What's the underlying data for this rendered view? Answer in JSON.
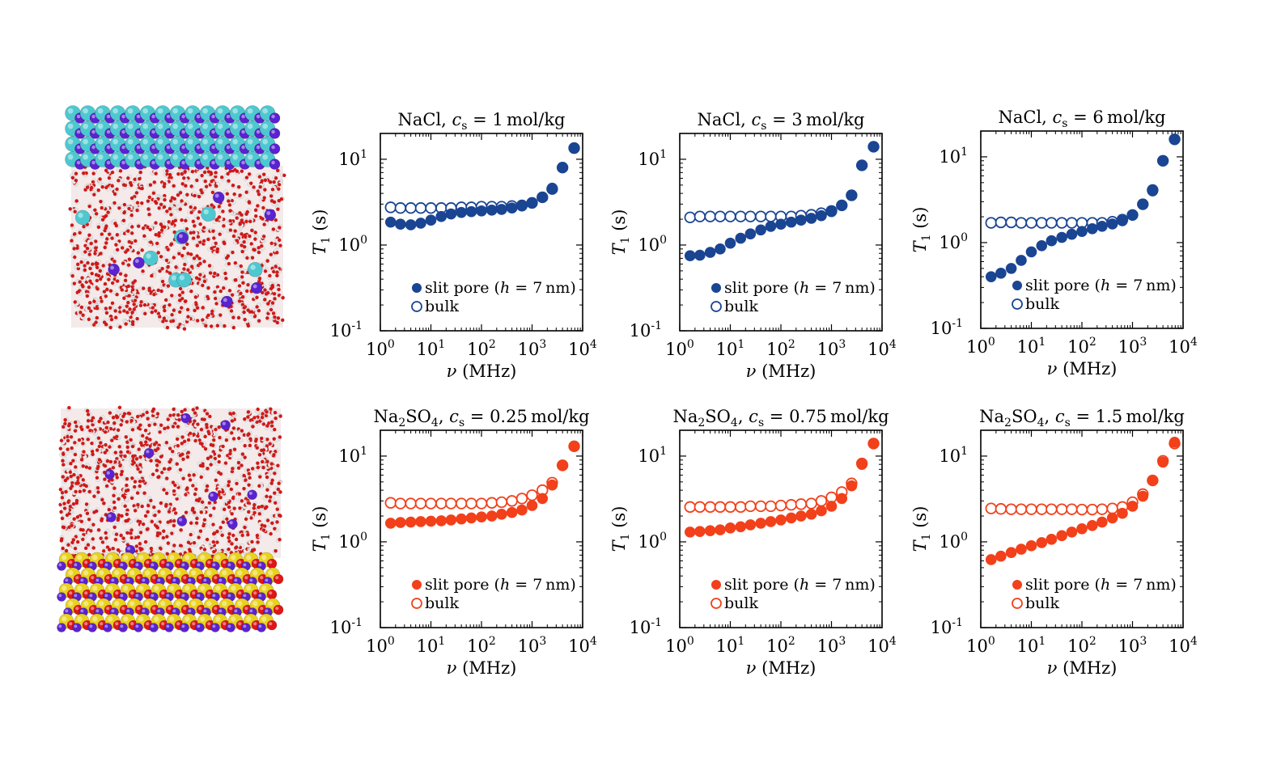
{
  "colors": {
    "nacl": "#1a4592",
    "na2so4": "#f2401b",
    "axis": "#000000",
    "water_o": "#d01818",
    "water_h": "#e8e8e8",
    "cl_cyan": "#4ec8d0",
    "na_purple": "#5a22d0",
    "s_yellow": "#e9d21c",
    "so4_o_red": "#e11515"
  },
  "snapshots": [
    {
      "label": "NaCl slab snapshot",
      "icon": "molecular-snapshot"
    },
    {
      "label": "Na2SO4 slab snapshot",
      "icon": "molecular-snapshot"
    }
  ],
  "legend": {
    "slit": "slit pore (h = 7 nm)",
    "bulk": "bulk"
  },
  "chart_data": [
    {
      "type": "scatter",
      "salt": "NaCl",
      "title": "NaCl, c_s = 1 mol/kg",
      "title_parts": [
        "NaCl, ",
        "c",
        "s",
        " = 1 mol/kg"
      ],
      "xlabel": "ν (MHz)",
      "ylabel": "T1 (s)",
      "xlim": [
        1,
        10000
      ],
      "ylim": [
        0.1,
        20
      ],
      "xscale": "log",
      "yscale": "log",
      "legend_position": "bottom-right",
      "series": [
        {
          "name": "slit pore (h = 7 nm)",
          "marker": "filled",
          "x": [
            1.6,
            2.5,
            4,
            6.3,
            10,
            16,
            25,
            40,
            63,
            100,
            160,
            250,
            400,
            630,
            1000,
            1600,
            2500,
            4000,
            6800
          ],
          "y": [
            1.85,
            1.75,
            1.72,
            1.8,
            1.95,
            2.15,
            2.3,
            2.4,
            2.45,
            2.5,
            2.55,
            2.6,
            2.7,
            2.85,
            3.1,
            3.6,
            4.6,
            8.0,
            13.5
          ]
        },
        {
          "name": "bulk",
          "marker": "open",
          "x": [
            1.6,
            2.5,
            4,
            6.3,
            10,
            16,
            25,
            40,
            63,
            100,
            160,
            250,
            400,
            630,
            1000,
            1600,
            2500,
            4000,
            6800
          ],
          "y": [
            2.75,
            2.7,
            2.7,
            2.7,
            2.7,
            2.7,
            2.7,
            2.75,
            2.75,
            2.8,
            2.8,
            2.8,
            2.85,
            2.9,
            3.1,
            3.6,
            4.5,
            8.0,
            13.5
          ]
        }
      ]
    },
    {
      "type": "scatter",
      "salt": "NaCl",
      "title": "NaCl, c_s = 3 mol/kg",
      "title_parts": [
        "NaCl, ",
        "c",
        "s",
        " = 3 mol/kg"
      ],
      "xlabel": "ν (MHz)",
      "ylabel": "T1 (s)",
      "xlim": [
        1,
        10000
      ],
      "ylim": [
        0.1,
        20
      ],
      "xscale": "log",
      "yscale": "log",
      "legend_position": "bottom-right",
      "series": [
        {
          "name": "slit pore (h = 7 nm)",
          "marker": "filled",
          "x": [
            1.6,
            2.5,
            4,
            6.3,
            10,
            16,
            25,
            40,
            63,
            100,
            160,
            250,
            400,
            630,
            1000,
            1600,
            2500,
            4000,
            6800
          ],
          "y": [
            0.75,
            0.76,
            0.82,
            0.9,
            1.05,
            1.2,
            1.35,
            1.5,
            1.65,
            1.75,
            1.85,
            1.95,
            2.05,
            2.2,
            2.45,
            2.9,
            3.8,
            8.5,
            14.0
          ]
        },
        {
          "name": "bulk",
          "marker": "open",
          "x": [
            1.6,
            2.5,
            4,
            6.3,
            10,
            16,
            25,
            40,
            63,
            100,
            160,
            250,
            400,
            630,
            1000,
            1600,
            2500,
            4000,
            6800
          ],
          "y": [
            2.1,
            2.15,
            2.15,
            2.15,
            2.15,
            2.15,
            2.15,
            2.15,
            2.15,
            2.15,
            2.15,
            2.2,
            2.25,
            2.35,
            2.5,
            2.9,
            3.8,
            8.5,
            14.0
          ]
        }
      ]
    },
    {
      "type": "scatter",
      "salt": "NaCl",
      "title": "NaCl, c_s = 6 mol/kg",
      "title_parts": [
        "NaCl, ",
        "c",
        "s",
        " = 6 mol/kg"
      ],
      "xlabel": "ν (MHz)",
      "ylabel": "T1 (s)",
      "xlim": [
        1,
        10000
      ],
      "ylim": [
        0.1,
        20
      ],
      "xscale": "log",
      "yscale": "log",
      "legend_position": "bottom-right",
      "series": [
        {
          "name": "slit pore (h = 7 nm)",
          "marker": "filled",
          "x": [
            1.6,
            2.5,
            4,
            6.3,
            10,
            16,
            25,
            40,
            63,
            100,
            160,
            250,
            400,
            630,
            1000,
            1600,
            2500,
            4000,
            6800
          ],
          "y": [
            0.4,
            0.44,
            0.5,
            0.62,
            0.78,
            0.92,
            1.05,
            1.15,
            1.25,
            1.35,
            1.45,
            1.55,
            1.65,
            1.8,
            2.1,
            2.8,
            4.0,
            9.0,
            16.0
          ]
        },
        {
          "name": "bulk",
          "marker": "open",
          "x": [
            1.6,
            2.5,
            4,
            6.3,
            10,
            16,
            25,
            40,
            63,
            100,
            160,
            250,
            400,
            630,
            1000,
            1600,
            2500,
            4000,
            6800
          ],
          "y": [
            1.7,
            1.72,
            1.72,
            1.7,
            1.7,
            1.7,
            1.7,
            1.7,
            1.7,
            1.7,
            1.7,
            1.7,
            1.75,
            1.85,
            2.1,
            2.8,
            4.1,
            9.0,
            16.0
          ]
        }
      ]
    },
    {
      "type": "scatter",
      "salt": "Na2SO4",
      "title": "Na2SO4, c_s = 0.25 mol/kg",
      "title_parts": [
        "Na",
        "2",
        "SO",
        "4",
        ", ",
        "c",
        "s",
        " = 0.25 mol/kg"
      ],
      "xlabel": "ν (MHz)",
      "ylabel": "T1 (s)",
      "xlim": [
        1,
        10000
      ],
      "ylim": [
        0.1,
        20
      ],
      "xscale": "log",
      "yscale": "log",
      "legend_position": "bottom-right",
      "series": [
        {
          "name": "slit pore (h = 7 nm)",
          "marker": "filled",
          "x": [
            1.6,
            2.5,
            4,
            6.3,
            10,
            16,
            25,
            40,
            63,
            100,
            160,
            250,
            400,
            630,
            1000,
            1600,
            2500,
            4000,
            6800
          ],
          "y": [
            1.65,
            1.68,
            1.7,
            1.72,
            1.74,
            1.76,
            1.8,
            1.85,
            1.9,
            1.95,
            2.0,
            2.1,
            2.2,
            2.35,
            2.65,
            3.2,
            4.6,
            7.8,
            13.0
          ]
        },
        {
          "name": "bulk",
          "marker": "open",
          "x": [
            1.6,
            2.5,
            4,
            6.3,
            10,
            16,
            25,
            40,
            63,
            100,
            160,
            250,
            400,
            630,
            1000,
            1600,
            2500,
            4000,
            6800
          ],
          "y": [
            2.85,
            2.8,
            2.8,
            2.8,
            2.8,
            2.8,
            2.8,
            2.8,
            2.8,
            2.8,
            2.85,
            2.9,
            3.0,
            3.2,
            3.5,
            4.0,
            4.9,
            7.8,
            13.0
          ]
        }
      ]
    },
    {
      "type": "scatter",
      "salt": "Na2SO4",
      "title": "Na2SO4, c_s = 0.75 mol/kg",
      "title_parts": [
        "Na",
        "2",
        "SO",
        "4",
        ", ",
        "c",
        "s",
        " = 0.75 mol/kg"
      ],
      "xlabel": "ν (MHz)",
      "ylabel": "T1 (s)",
      "xlim": [
        1,
        10000
      ],
      "ylim": [
        0.1,
        20
      ],
      "xscale": "log",
      "yscale": "log",
      "legend_position": "bottom-right",
      "series": [
        {
          "name": "slit pore (h = 7 nm)",
          "marker": "filled",
          "x": [
            1.6,
            2.5,
            4,
            6.3,
            10,
            16,
            25,
            40,
            63,
            100,
            160,
            250,
            400,
            630,
            1000,
            1600,
            2500,
            4000,
            6800
          ],
          "y": [
            1.3,
            1.32,
            1.35,
            1.38,
            1.45,
            1.5,
            1.58,
            1.65,
            1.72,
            1.8,
            1.9,
            2.0,
            2.1,
            2.3,
            2.6,
            3.2,
            4.5,
            8.0,
            14.0
          ]
        },
        {
          "name": "bulk",
          "marker": "open",
          "x": [
            1.6,
            2.5,
            4,
            6.3,
            10,
            16,
            25,
            40,
            63,
            100,
            160,
            250,
            400,
            630,
            1000,
            1600,
            2500,
            4000,
            6800
          ],
          "y": [
            2.55,
            2.55,
            2.55,
            2.55,
            2.55,
            2.55,
            2.6,
            2.6,
            2.6,
            2.65,
            2.7,
            2.75,
            2.8,
            3.0,
            3.3,
            3.8,
            4.8,
            8.2,
            14.0
          ]
        }
      ]
    },
    {
      "type": "scatter",
      "salt": "Na2SO4",
      "title": "Na2SO4, c_s = 1.5 mol/kg",
      "title_parts": [
        "Na",
        "2",
        "SO",
        "4",
        ", ",
        "c",
        "s",
        " = 1.5 mol/kg"
      ],
      "xlabel": "ν (MHz)",
      "ylabel": "T1 (s)",
      "xlim": [
        1,
        10000
      ],
      "ylim": [
        0.1,
        20
      ],
      "xscale": "log",
      "yscale": "log",
      "legend_position": "bottom-right",
      "series": [
        {
          "name": "slit pore (h = 7 nm)",
          "marker": "filled",
          "x": [
            1.6,
            2.5,
            4,
            6.3,
            10,
            16,
            25,
            40,
            63,
            100,
            160,
            250,
            400,
            630,
            1000,
            1600,
            2500,
            4000,
            6800
          ],
          "y": [
            0.62,
            0.68,
            0.75,
            0.82,
            0.9,
            0.98,
            1.07,
            1.18,
            1.3,
            1.42,
            1.55,
            1.7,
            1.9,
            2.15,
            2.6,
            3.4,
            5.2,
            8.5,
            14.5
          ]
        },
        {
          "name": "bulk",
          "marker": "open",
          "x": [
            1.6,
            2.5,
            4,
            6.3,
            10,
            16,
            25,
            40,
            63,
            100,
            160,
            250,
            400,
            630,
            1000,
            1600,
            2500,
            4000,
            6800
          ],
          "y": [
            2.45,
            2.42,
            2.4,
            2.4,
            2.4,
            2.4,
            2.4,
            2.4,
            2.4,
            2.38,
            2.38,
            2.4,
            2.45,
            2.55,
            2.9,
            3.6,
            5.2,
            8.8,
            14.0
          ]
        }
      ]
    }
  ]
}
